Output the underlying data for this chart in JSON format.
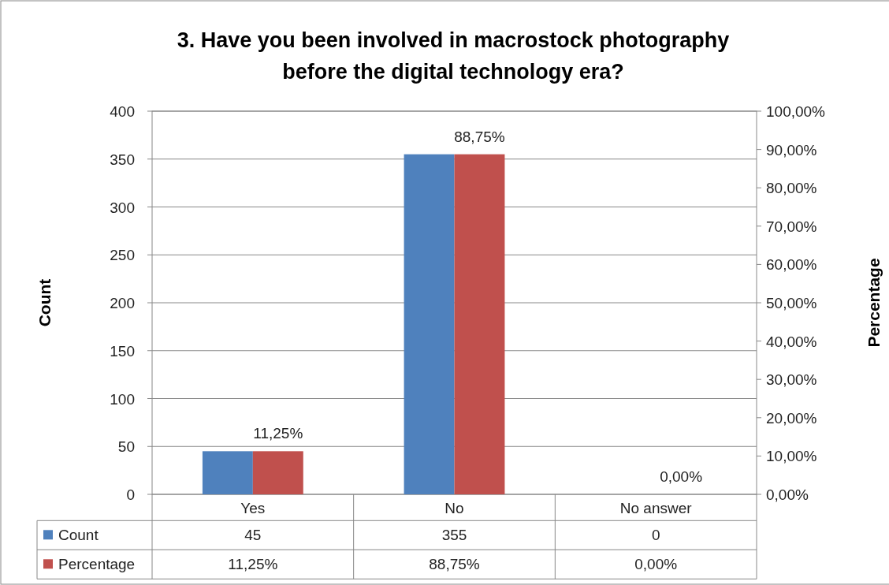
{
  "chart_data": {
    "type": "bar",
    "title": "3. Have you been involved in macrostock photography before the digital technology era?",
    "categories": [
      "Yes",
      "No",
      "No answer"
    ],
    "series": [
      {
        "name": "Count",
        "color": "#4f81bd",
        "values": [
          45,
          355,
          0
        ],
        "value_labels": [
          "45",
          "355",
          "0"
        ]
      },
      {
        "name": "Percentage",
        "color": "#c0504d",
        "values": [
          11.25,
          88.75,
          0
        ],
        "axis": "y2",
        "value_labels": [
          "11,25%",
          "88,75%",
          "0,00%"
        ]
      }
    ],
    "ylabel": "Count",
    "y2label": "Percentage",
    "ylim": [
      0,
      400
    ],
    "yticks": [
      0,
      50,
      100,
      150,
      200,
      250,
      300,
      350,
      400
    ],
    "y2lim": [
      0,
      100
    ],
    "y2ticks": [
      {
        "value": 0,
        "label": "0,00%"
      },
      {
        "value": 10,
        "label": "10,00%"
      },
      {
        "value": 20,
        "label": "20,00%"
      },
      {
        "value": 30,
        "label": "30,00%"
      },
      {
        "value": 40,
        "label": "40,00%"
      },
      {
        "value": 50,
        "label": "50,00%"
      },
      {
        "value": 60,
        "label": "60,00%"
      },
      {
        "value": 70,
        "label": "70,00%"
      },
      {
        "value": 80,
        "label": "80,00%"
      },
      {
        "value": 90,
        "label": "90,00%"
      },
      {
        "value": 100,
        "label": "100,00%"
      }
    ],
    "grid": "y",
    "legend": "bottom"
  }
}
